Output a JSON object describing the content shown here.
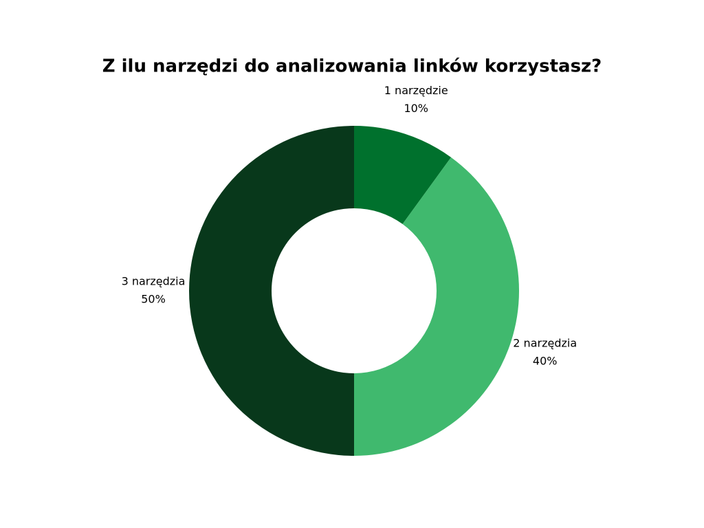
{
  "chart_data": {
    "type": "donut",
    "title": "Z ilu narzędzi do analizowania linków korzystasz?",
    "categories": [
      "1 narzędzie",
      "2 narzędzia",
      "3 narzędzia"
    ],
    "values": [
      10,
      40,
      50
    ],
    "value_labels": [
      "10%",
      "40%",
      "50%"
    ],
    "colors": [
      "#00712d",
      "#40b96e",
      "#08381b"
    ]
  }
}
